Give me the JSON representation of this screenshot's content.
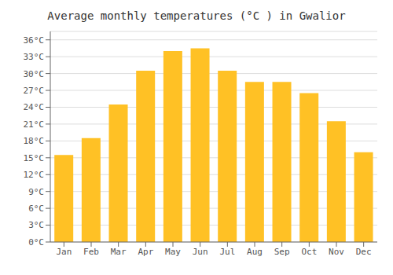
{
  "chart_data": {
    "type": "bar",
    "title": "Average monthly temperatures (°C ) in Gwalior",
    "categories": [
      "Jan",
      "Feb",
      "Mar",
      "Apr",
      "May",
      "Jun",
      "Jul",
      "Aug",
      "Sep",
      "Oct",
      "Nov",
      "Dec"
    ],
    "values": [
      15.5,
      18.5,
      24.5,
      30.5,
      34.0,
      34.5,
      30.5,
      28.5,
      28.5,
      26.5,
      21.5,
      16.0
    ],
    "color": "#FFC125",
    "ylim": [
      0,
      37.5
    ],
    "yticks": [
      {
        "value": 0,
        "label": "0°C"
      },
      {
        "value": 3,
        "label": "3°C"
      },
      {
        "value": 6,
        "label": "6°C"
      },
      {
        "value": 9,
        "label": "9°C"
      },
      {
        "value": 12,
        "label": "12°C"
      },
      {
        "value": 15,
        "label": "15°C"
      },
      {
        "value": 18,
        "label": "18°C"
      },
      {
        "value": 21,
        "label": "21°C"
      },
      {
        "value": 24,
        "label": "24°C"
      },
      {
        "value": 27,
        "label": "27°C"
      },
      {
        "value": 30,
        "label": "30°C"
      },
      {
        "value": 33,
        "label": "33°C"
      },
      {
        "value": 36,
        "label": "36°C"
      }
    ],
    "grid": true
  }
}
